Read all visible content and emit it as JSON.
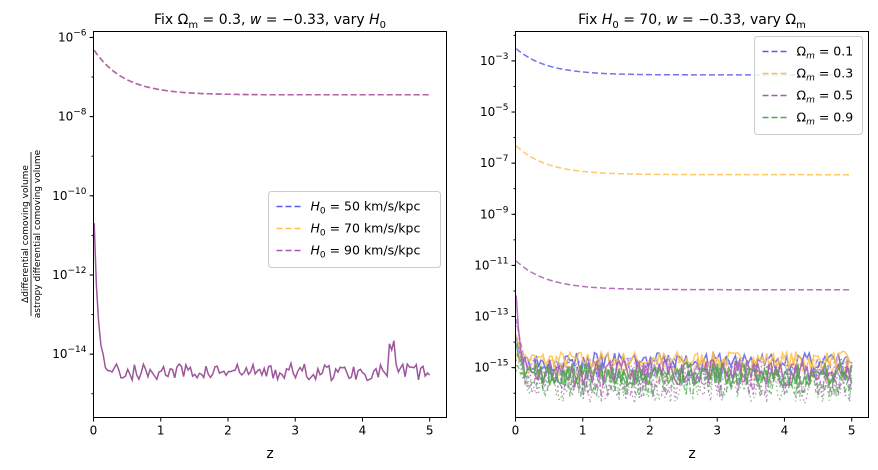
{
  "chart_data": [
    {
      "type": "line",
      "title": "Fix Ωm = 0.3, w = −0.33, vary H0",
      "title_parts": {
        "p1": "Fix Ω",
        "sub_m": "m",
        "p2": " = 0.3, ",
        "w": "w",
        "p3": " = −0.33, vary ",
        "h": "H",
        "sub_0": "0"
      },
      "xlabel": "z",
      "ylabel_num": "Δdifferential comoving volume",
      "ylabel_den": "astropy differential comoving volume",
      "xlim": [
        0,
        5.25
      ],
      "ylim_log10": [
        -15.6,
        -5.85
      ],
      "y_scale": "log",
      "x_ticks": [
        0,
        1,
        2,
        3,
        4,
        5
      ],
      "x_tick_labels": [
        "0",
        "1",
        "2",
        "3",
        "4",
        "5"
      ],
      "y_ticks_log10": [
        -14,
        -12,
        -10,
        -8,
        -6
      ],
      "y_tick_labels": [
        [
          "10",
          "−14"
        ],
        [
          "10",
          "−12"
        ],
        [
          "10",
          "−10"
        ],
        [
          "10",
          "−8"
        ],
        [
          "10",
          "−6"
        ]
      ],
      "legend_position": "center-right",
      "series": [
        {
          "name": "H0 = 50 km/s/kpc",
          "label_main": "H",
          "label_sub": "0",
          "label_rest": " = 50 km/s/kpc",
          "color": "#5a5ae6",
          "style": "dashed",
          "model": {
            "a": -6.3,
            "b": -7.45,
            "k": 2.2
          }
        },
        {
          "name": "H0 = 70 km/s/kpc",
          "label_main": "H",
          "label_sub": "0",
          "label_rest": " = 70 km/s/kpc",
          "color": "#ffc04d",
          "style": "dashed",
          "model": {
            "a": -6.3,
            "b": -7.45,
            "k": 2.2
          }
        },
        {
          "name": "H0 = 90 km/s/kpc",
          "label_main": "H",
          "label_sub": "0",
          "label_rest": " = 90 km/s/kpc",
          "color": "#a857b3",
          "style": "dashed",
          "model": {
            "a": -6.3,
            "b": -7.45,
            "k": 2.2
          }
        }
      ],
      "noise_series": [
        {
          "name": "residual",
          "color": "#8b3a8a",
          "style": "solid",
          "start": -10.0,
          "floor": -14.45,
          "spread": 0.22,
          "jump_at": 4.4,
          "jump": 0.6
        }
      ]
    },
    {
      "type": "line",
      "title": "Fix H0 = 70, w = −0.33, vary Ωm",
      "title_parts": {
        "p1": "Fix ",
        "h": "H",
        "sub_0": "0",
        "p2": " = 70, ",
        "w": "w",
        "p3": " = −0.33, vary Ω",
        "sub_m": "m"
      },
      "xlabel": "z",
      "xlim": [
        0,
        5.25
      ],
      "ylim_log10": [
        -16.95,
        -1.85
      ],
      "y_scale": "log",
      "x_ticks": [
        0,
        1,
        2,
        3,
        4,
        5
      ],
      "x_tick_labels": [
        "0",
        "1",
        "2",
        "3",
        "4",
        "5"
      ],
      "y_ticks_log10": [
        -15,
        -13,
        -11,
        -9,
        -7,
        -5,
        -3
      ],
      "y_tick_labels": [
        [
          "10",
          "−15"
        ],
        [
          "10",
          "−13"
        ],
        [
          "10",
          "−11"
        ],
        [
          "10",
          "−9"
        ],
        [
          "10",
          "−7"
        ],
        [
          "10",
          "−5"
        ],
        [
          "10",
          "−3"
        ]
      ],
      "legend_position": "top-right",
      "series": [
        {
          "name": "Ωm = 0.1",
          "label_main": "Ω",
          "label_sub": "m",
          "label_rest": " = 0.1",
          "color": "#5a5ae6",
          "style": "dashed",
          "model": {
            "a": -2.5,
            "b": -3.55,
            "k": 2.2
          }
        },
        {
          "name": "Ωm = 0.3",
          "label_main": "Ω",
          "label_sub": "m",
          "label_rest": " = 0.3",
          "color": "#ffc04d",
          "style": "dashed",
          "model": {
            "a": -6.3,
            "b": -7.45,
            "k": 2.2
          }
        },
        {
          "name": "Ωm = 0.5",
          "label_main": "Ω",
          "label_sub": "m",
          "label_rest": " = 0.5",
          "color": "#a857b3",
          "style": "dashed",
          "model": {
            "a": -10.8,
            "b": -11.95,
            "k": 2.2
          }
        },
        {
          "name": "Ωm = 0.9",
          "label_main": "Ω",
          "label_sub": "m",
          "label_rest": " = 0.9",
          "color": "#4ca84c",
          "style": "dashed",
          "model": null
        }
      ],
      "noise_series": [
        {
          "name": "Ωm = 0.1 residual",
          "color": "#5a5ae6",
          "style": "solid",
          "start": -13.6,
          "floor": -14.75,
          "spread": 0.35,
          "seed": 3
        },
        {
          "name": "Ωm = 0.3 residual",
          "color": "#ffc04d",
          "style": "solid",
          "start": -13.5,
          "floor": -14.7,
          "spread": 0.35,
          "seed": 7
        },
        {
          "name": "Ωm = 0.5 residual",
          "color": "#a857b3",
          "style": "solid",
          "start": -11.6,
          "floor": -15.2,
          "spread": 0.5,
          "seed": 11
        },
        {
          "name": "Ωm = 0.9 residual",
          "color": "#4ca84c",
          "style": "solid",
          "start": -13.8,
          "floor": -15.25,
          "spread": 0.45,
          "seed": 17
        }
      ]
    }
  ]
}
